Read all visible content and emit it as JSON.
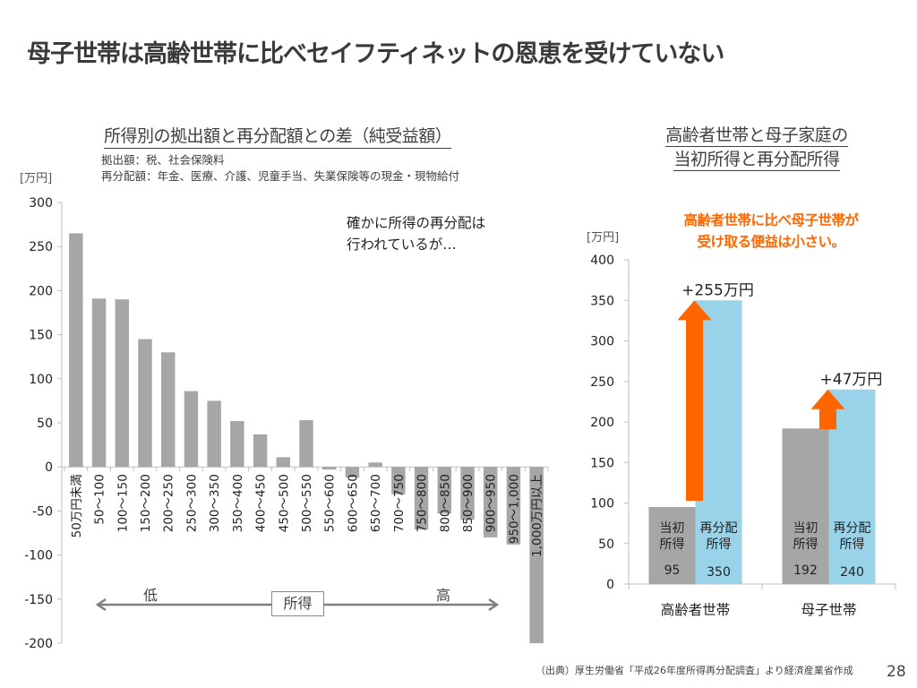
{
  "slide": {
    "title": "母子世帯は高齢世帯に比べセイフティネットの恩恵を受けていない",
    "page_number": "28",
    "source": "（出典）厚生労働省「平成26年度所得再分配調査」より経済産業省作成"
  },
  "left_panel": {
    "title": "所得別の拠出額と再分配額との差（純受益額）",
    "subtitle_1": "拠出額：税、社会保険料",
    "subtitle_2": "再分配額：年金、医療、介護、児童手当、失業保険等の現金・現物給付",
    "unit": "[万円]",
    "annotation_line1": "確かに所得の再分配は",
    "annotation_line2": "行われているが…",
    "income_axis_label": "所得",
    "low_label": "低",
    "high_label": "高"
  },
  "right_panel": {
    "title_line1": "高齢者世帯と母子家庭の",
    "title_line2": "当初所得と再分配所得",
    "note_line1": "高齢者世帯に比べ母子世帯が",
    "note_line2": "受け取る便益は小さい。",
    "unit": "[万円]"
  },
  "colors": {
    "gray_bar": "#a6a6a6",
    "blue_bar": "#99d3ea",
    "orange_arrow": "#ff6600",
    "axis": "#bfbfbf"
  },
  "chart_data": [
    {
      "type": "bar",
      "title": "所得別の拠出額と再分配額との差（純受益額）",
      "xlabel": "所得",
      "ylabel": "[万円]",
      "ylim": [
        -200,
        300
      ],
      "yticks": [
        300,
        250,
        200,
        150,
        100,
        50,
        0,
        -50,
        -100,
        -150,
        -200
      ],
      "grid": false,
      "categories": [
        "50万円未満",
        "50～100",
        "100～150",
        "150～200",
        "200～250",
        "250～300",
        "300～350",
        "350～400",
        "400～450",
        "450～500",
        "500～550",
        "550～600",
        "600～650",
        "650～700",
        "700～750",
        "750～800",
        "800～850",
        "850～900",
        "900～950",
        "950～1,000",
        "1,000万円以上"
      ],
      "values": [
        265,
        191,
        190,
        145,
        130,
        86,
        75,
        52,
        37,
        11,
        53,
        -3,
        -12,
        5,
        -31,
        -71,
        -53,
        -60,
        -80,
        -88,
        -200
      ]
    },
    {
      "type": "bar",
      "title": "高齢者世帯と母子家庭の当初所得と再分配所得",
      "ylabel": "[万円]",
      "ylim": [
        0,
        400
      ],
      "yticks": [
        400,
        350,
        300,
        250,
        200,
        150,
        100,
        50,
        0
      ],
      "grid": false,
      "categories": [
        "高齢者世帯",
        "母子世帯"
      ],
      "series": [
        {
          "name": "当初所得",
          "label": "当初\n所得",
          "values": [
            95,
            192
          ]
        },
        {
          "name": "再分配所得",
          "label": "再分配\n所得",
          "values": [
            350,
            240
          ]
        }
      ],
      "series_labels": {
        "initial_line1": "当初",
        "initial_line2": "所得",
        "redist_line1": "再分配",
        "redist_line2": "所得"
      },
      "annotations": [
        "+255万円",
        "+47万円"
      ]
    }
  ]
}
